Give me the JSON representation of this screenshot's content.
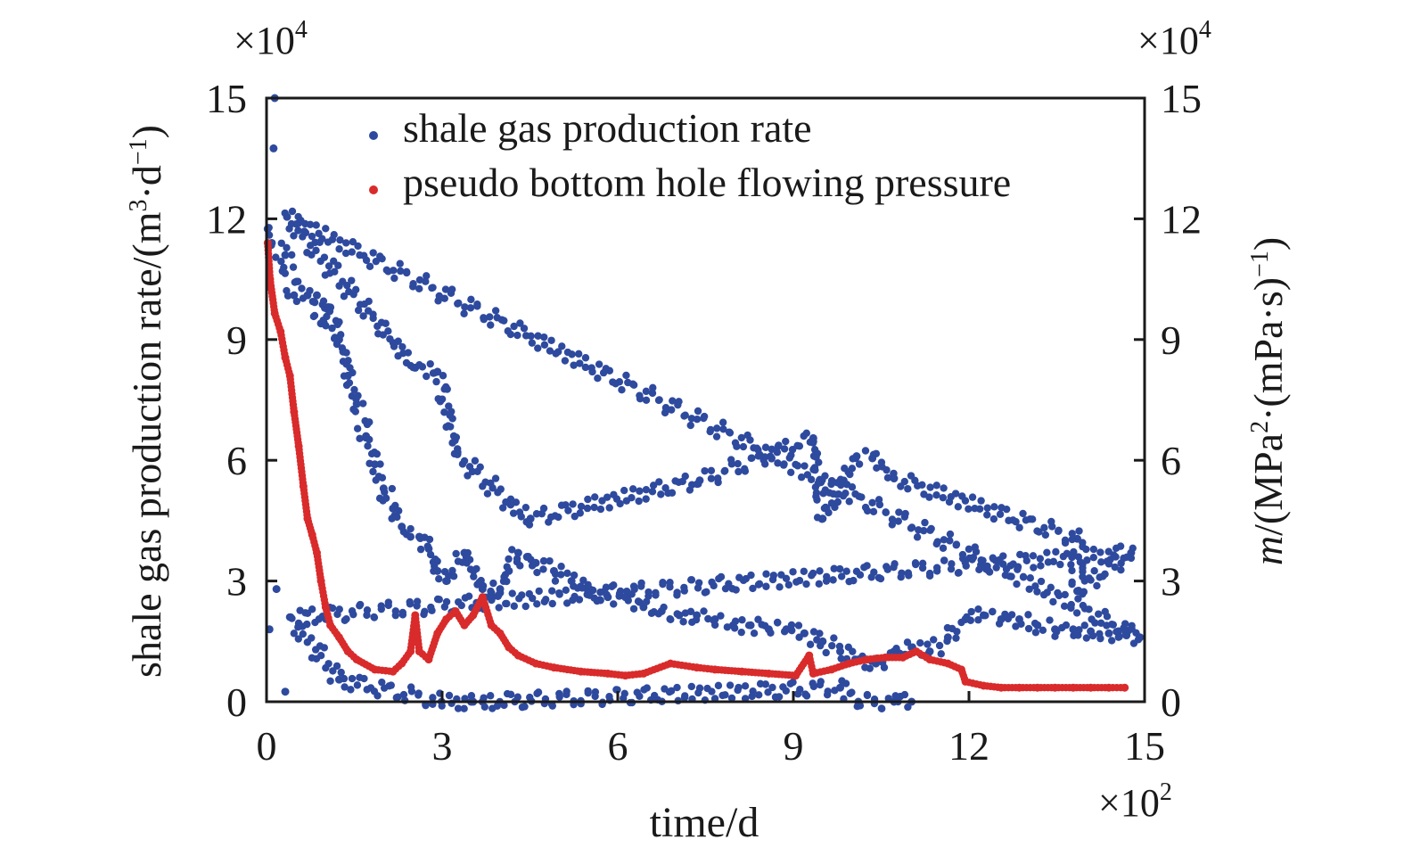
{
  "chart_data": {
    "type": "scatter",
    "xlabel": "time/d",
    "x_multiplier": "×10",
    "x_multiplier_exp": "2",
    "ylabel_left": "shale gas production rate/(m",
    "ylabel_left_sup1": "3",
    "ylabel_left_mid": "·d",
    "ylabel_left_sup2": "−1",
    "ylabel_left_end": ")",
    "ylabel_right_italic": "m",
    "ylabel_right": "/(MPa",
    "ylabel_right_sup1": "2",
    "ylabel_right_mid": "·(mPa·s)",
    "ylabel_right_sup2": "−1",
    "ylabel_right_end": ")",
    "y_multiplier": "×10",
    "y_multiplier_exp": "4",
    "xlim": [
      0,
      15
    ],
    "ylim_left": [
      0,
      15
    ],
    "ylim_right": [
      0,
      15
    ],
    "x_ticks": [
      "0",
      "3",
      "6",
      "9",
      "12",
      "15"
    ],
    "y_ticks_left": [
      "0",
      "3",
      "6",
      "9",
      "12",
      "15"
    ],
    "y_ticks_right": [
      "0",
      "3",
      "6",
      "9",
      "12",
      "15"
    ],
    "grid": false,
    "legend_position": "top",
    "series": [
      {
        "name": "shale gas production rate",
        "color": "#2e4a9e",
        "axis": "left",
        "points": [
          [
            0.02,
            11.75
          ],
          [
            0.09,
            11.4
          ],
          [
            0.32,
            11.1
          ],
          [
            0.47,
            10.1
          ],
          [
            0.7,
            10.1
          ],
          [
            0.86,
            10.1
          ],
          [
            0.93,
            9.4
          ],
          [
            1.09,
            9.8
          ],
          [
            1.24,
            9.0
          ],
          [
            1.31,
            8.7
          ],
          [
            1.39,
            8.1
          ],
          [
            1.54,
            7.4
          ],
          [
            1.7,
            6.6
          ],
          [
            1.85,
            5.9
          ],
          [
            2.0,
            5.3
          ],
          [
            2.16,
            4.8
          ],
          [
            2.31,
            4.35
          ],
          [
            2.46,
            4.1
          ],
          [
            2.61,
            4.1
          ],
          [
            2.77,
            3.8
          ],
          [
            2.92,
            3.25
          ],
          [
            3.07,
            3.0
          ],
          [
            3.38,
            3.7
          ],
          [
            3.69,
            2.8
          ],
          [
            3.84,
            2.7
          ],
          [
            3.99,
            2.8
          ],
          [
            4.14,
            3.25
          ],
          [
            4.3,
            3.7
          ],
          [
            4.45,
            3.6
          ],
          [
            4.6,
            3.45
          ],
          [
            4.91,
            3.25
          ],
          [
            5.21,
            3.0
          ],
          [
            5.52,
            2.8
          ],
          [
            5.83,
            2.6
          ],
          [
            6.13,
            2.6
          ],
          [
            6.44,
            2.35
          ],
          [
            6.75,
            2.25
          ],
          [
            7.05,
            2.15
          ],
          [
            7.35,
            2.15
          ],
          [
            7.66,
            2.05
          ],
          [
            7.97,
            1.9
          ],
          [
            8.27,
            1.9
          ],
          [
            8.58,
            1.8
          ],
          [
            8.88,
            1.8
          ],
          [
            9.19,
            1.7
          ],
          [
            9.5,
            1.5
          ],
          [
            9.8,
            1.25
          ],
          [
            10.11,
            1.05
          ],
          [
            10.41,
            0.95
          ],
          [
            10.72,
            1.25
          ],
          [
            11.02,
            1.35
          ],
          [
            11.33,
            1.25
          ],
          [
            11.64,
            1.6
          ],
          [
            11.94,
            2.05
          ],
          [
            12.25,
            2.15
          ],
          [
            12.55,
            2.05
          ],
          [
            12.86,
            2.05
          ],
          [
            13.17,
            1.9
          ],
          [
            13.47,
            1.8
          ],
          [
            13.78,
            1.8
          ],
          [
            14.08,
            1.75
          ],
          [
            14.39,
            1.7
          ],
          [
            14.69,
            1.65
          ],
          [
            14.92,
            1.6
          ],
          [
            0.14,
            15.0
          ],
          [
            0.12,
            13.75
          ],
          [
            0.35,
            12.05
          ],
          [
            2.54,
            8.3
          ],
          [
            2.92,
            8.2
          ],
          [
            3.26,
            6.15
          ],
          [
            4.17,
            4.9
          ],
          [
            4.51,
            4.55
          ],
          [
            7.4,
            5.5
          ],
          [
            9.34,
            6.55
          ],
          [
            9.5,
            4.55
          ],
          [
            10.08,
            6.1
          ],
          [
            10.35,
            6.05
          ],
          [
            10.72,
            5.55
          ],
          [
            13.85,
            4.05
          ],
          [
            13.85,
            2.75
          ],
          [
            14.77,
            3.7
          ],
          [
            0.32,
            0.25
          ],
          [
            0.41,
            2.1
          ],
          [
            0.17,
            2.8
          ],
          [
            0.05,
            1.8
          ],
          [
            1.24,
            0.55
          ],
          [
            2.99,
            0
          ],
          [
            3.53,
            0
          ],
          [
            3.69,
            0
          ],
          [
            9.8,
            0.35
          ],
          [
            10.11,
            0
          ],
          [
            10.72,
            0
          ],
          [
            11.02,
            0
          ]
        ]
      },
      {
        "name": "pseudo bottom hole flowing pressure",
        "color": "#d92b2b",
        "axis": "right",
        "points": [
          [
            0.02,
            11.4
          ],
          [
            0.06,
            10.5
          ],
          [
            0.14,
            9.65
          ],
          [
            0.24,
            9.2
          ],
          [
            0.32,
            8.55
          ],
          [
            0.4,
            8.1
          ],
          [
            0.47,
            7.2
          ],
          [
            0.55,
            6.35
          ],
          [
            0.63,
            5.35
          ],
          [
            0.7,
            4.55
          ],
          [
            0.78,
            4.15
          ],
          [
            0.86,
            3.7
          ],
          [
            0.93,
            3.0
          ],
          [
            1.01,
            2.35
          ],
          [
            1.09,
            1.9
          ],
          [
            1.24,
            1.6
          ],
          [
            1.39,
            1.25
          ],
          [
            1.54,
            1.05
          ],
          [
            1.85,
            0.8
          ],
          [
            2.16,
            0.75
          ],
          [
            2.31,
            0.95
          ],
          [
            2.46,
            1.25
          ],
          [
            2.54,
            2.15
          ],
          [
            2.61,
            1.25
          ],
          [
            2.77,
            1.05
          ],
          [
            2.92,
            1.7
          ],
          [
            3.07,
            2.05
          ],
          [
            3.23,
            2.25
          ],
          [
            3.38,
            1.9
          ],
          [
            3.53,
            2.15
          ],
          [
            3.69,
            2.6
          ],
          [
            3.84,
            1.9
          ],
          [
            3.99,
            1.7
          ],
          [
            4.14,
            1.35
          ],
          [
            4.3,
            1.15
          ],
          [
            4.6,
            0.95
          ],
          [
            4.91,
            0.85
          ],
          [
            5.37,
            0.75
          ],
          [
            5.83,
            0.7
          ],
          [
            6.13,
            0.65
          ],
          [
            6.44,
            0.7
          ],
          [
            6.9,
            0.95
          ],
          [
            7.35,
            0.85
          ],
          [
            7.66,
            0.8
          ],
          [
            8.12,
            0.75
          ],
          [
            8.58,
            0.7
          ],
          [
            9.04,
            0.65
          ],
          [
            9.27,
            1.15
          ],
          [
            9.34,
            0.7
          ],
          [
            9.65,
            0.8
          ],
          [
            9.95,
            0.95
          ],
          [
            10.26,
            1.05
          ],
          [
            10.57,
            1.1
          ],
          [
            10.87,
            1.1
          ],
          [
            11.1,
            1.25
          ],
          [
            11.33,
            1.05
          ],
          [
            11.64,
            0.95
          ],
          [
            11.87,
            0.8
          ],
          [
            11.94,
            0.5
          ],
          [
            12.25,
            0.4
          ],
          [
            12.55,
            0.35
          ],
          [
            12.86,
            0.35
          ],
          [
            13.17,
            0.35
          ],
          [
            13.47,
            0.35
          ],
          [
            13.78,
            0.35
          ],
          [
            14.08,
            0.35
          ],
          [
            14.39,
            0.35
          ],
          [
            14.66,
            0.35
          ]
        ]
      }
    ]
  }
}
